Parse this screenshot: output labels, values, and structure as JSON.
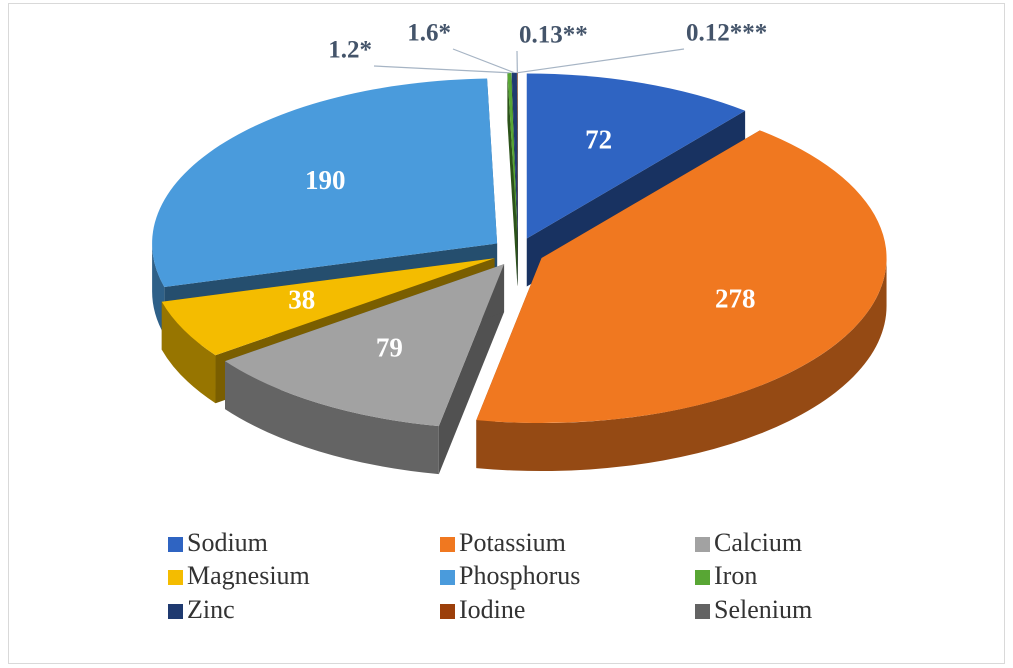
{
  "chart_data": {
    "type": "pie3d",
    "categories": [
      "Sodium",
      "Potassium",
      "Calcium",
      "Magnesium",
      "Phosphorus",
      "Iron",
      "Zinc",
      "Iodine",
      "Selenium"
    ],
    "values": [
      72,
      278,
      79,
      38,
      190,
      1.2,
      1.6,
      0.13,
      0.12
    ],
    "value_labels": [
      "72",
      "278",
      "79",
      "38",
      "190",
      "1.2*",
      "1.6*",
      "0.13**",
      "0.12***"
    ],
    "colors": [
      "#2f64c2",
      "#f07820",
      "#a2a2a2",
      "#f4bc00",
      "#4a9bdc",
      "#58a634",
      "#1f3a70",
      "#9c3f0a",
      "#636363"
    ],
    "legend": "bottom"
  }
}
